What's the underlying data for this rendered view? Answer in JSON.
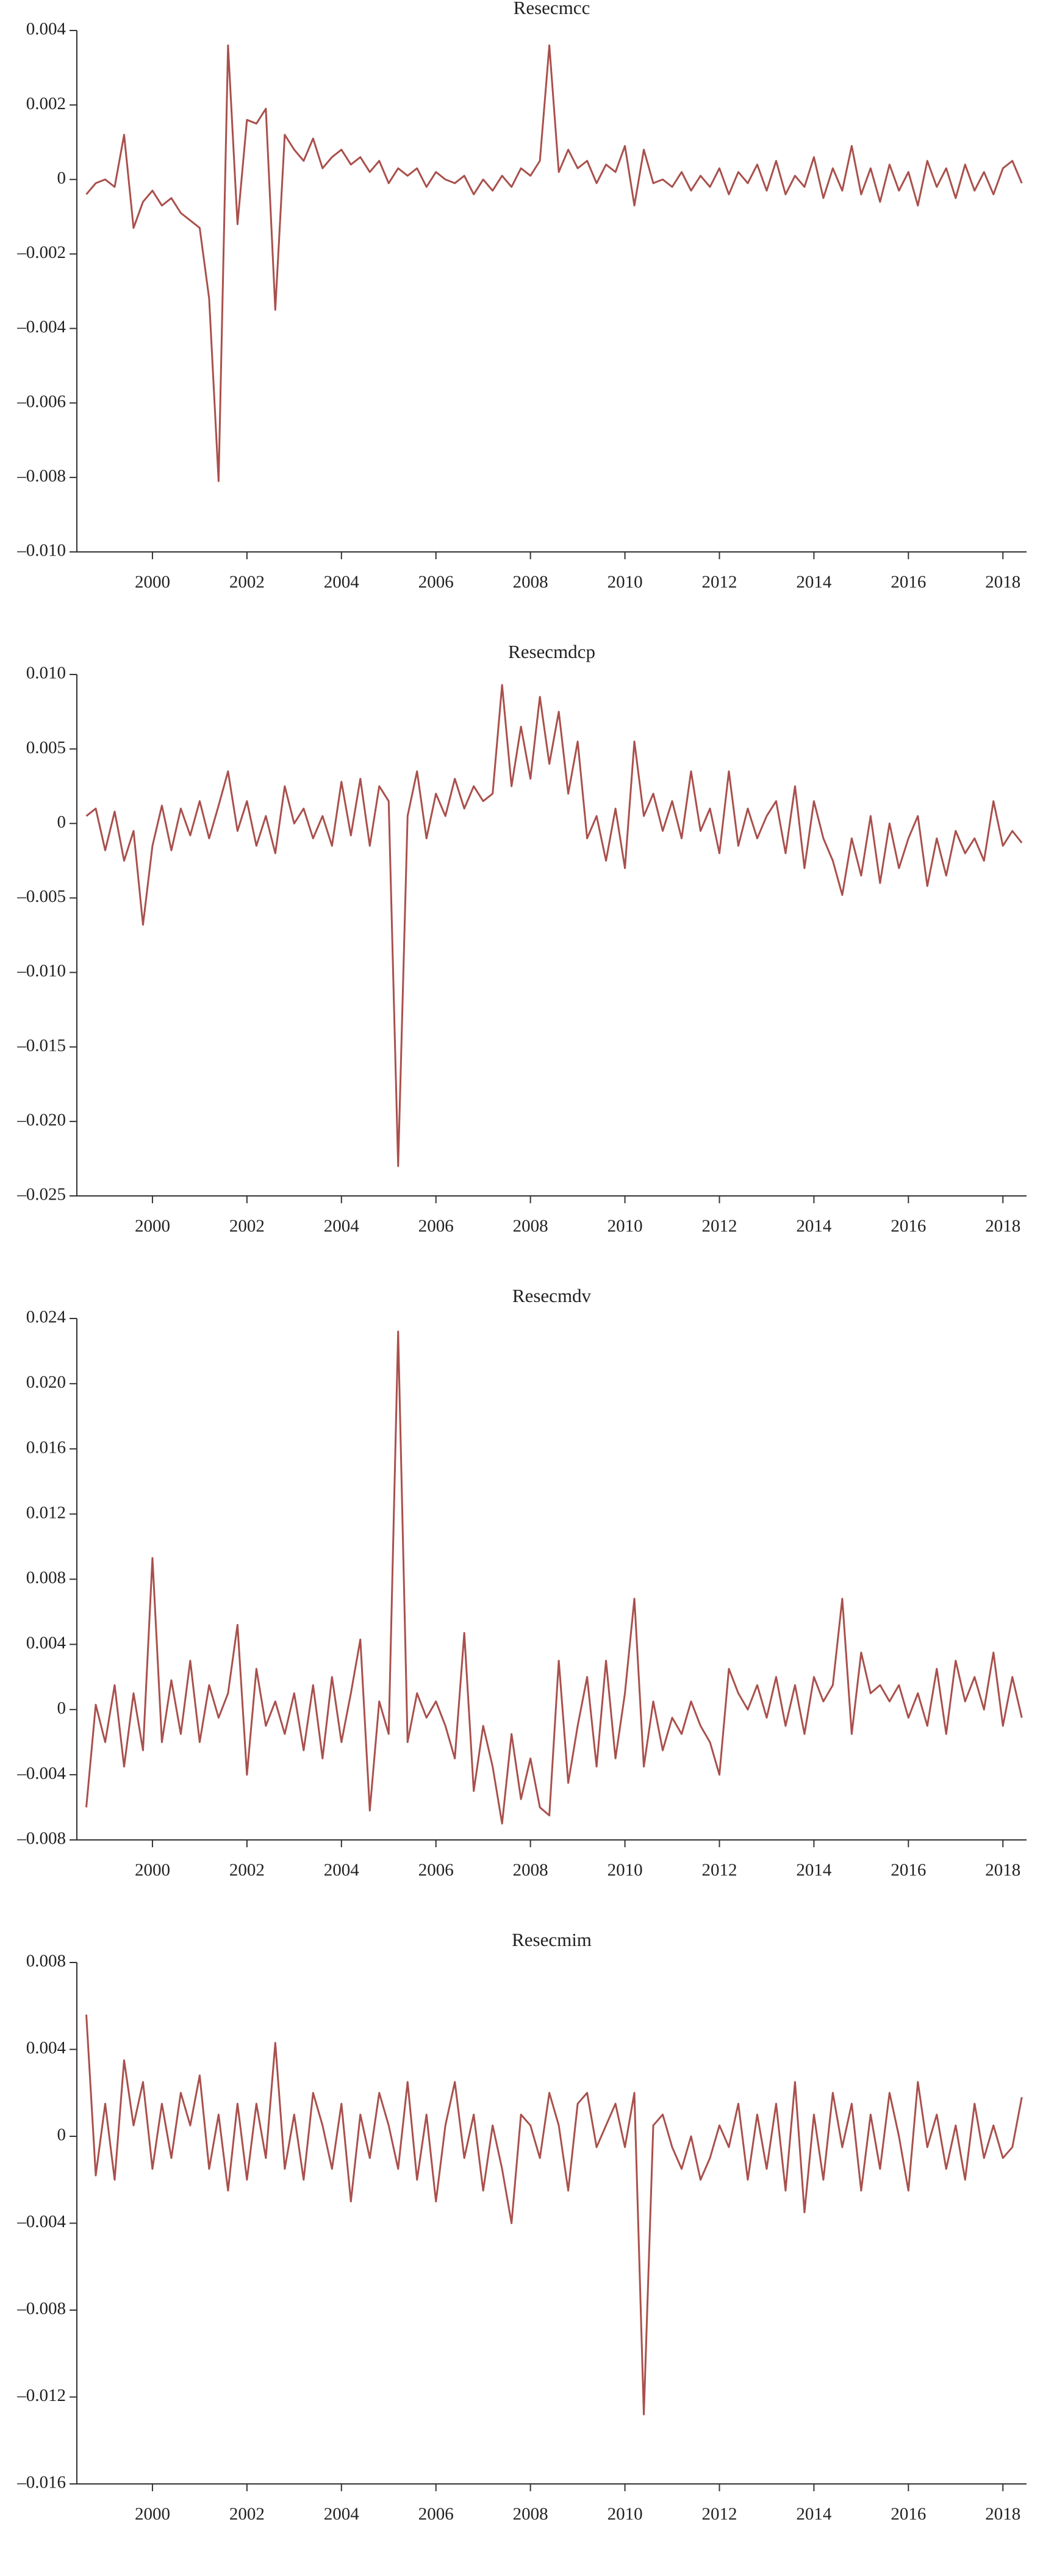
{
  "chart_data": [
    {
      "type": "line",
      "title": "Resecmcc",
      "color": "#a9504c",
      "xlim": [
        1998.4,
        2018.5
      ],
      "xticks": [
        2000,
        2002,
        2004,
        2006,
        2008,
        2010,
        2012,
        2014,
        2016,
        2018
      ],
      "ylim": [
        -0.01,
        0.004
      ],
      "yticks": [
        {
          "value": -0.01,
          "label": "–0.010"
        },
        {
          "value": -0.008,
          "label": "–0.008"
        },
        {
          "value": -0.006,
          "label": "–0.006"
        },
        {
          "value": -0.004,
          "label": "–0.004"
        },
        {
          "value": -0.002,
          "label": "–0.002"
        },
        0,
        0.002,
        0.004
      ],
      "x": [
        1998.6,
        1998.8,
        1999,
        1999.2,
        1999.4,
        1999.6,
        1999.8,
        2000,
        2000.2,
        2000.4,
        2000.6,
        2000.8,
        2001,
        2001.2,
        2001.4,
        2001.6,
        2001.8,
        2002,
        2002.2,
        2002.4,
        2002.6,
        2002.8,
        2003,
        2003.2,
        2003.4,
        2003.6,
        2003.8,
        2004,
        2004.2,
        2004.4,
        2004.6,
        2004.8,
        2005,
        2005.2,
        2005.4,
        2005.6,
        2005.8,
        2006,
        2006.2,
        2006.4,
        2006.6,
        2006.8,
        2007,
        2007.2,
        2007.4,
        2007.6,
        2007.8,
        2008,
        2008.2,
        2008.4,
        2008.6,
        2008.8,
        2009,
        2009.2,
        2009.4,
        2009.6,
        2009.8,
        2010,
        2010.2,
        2010.4,
        2010.6,
        2010.8,
        2011,
        2011.2,
        2011.4,
        2011.6,
        2011.8,
        2012,
        2012.2,
        2012.4,
        2012.6,
        2012.8,
        2013,
        2013.2,
        2013.4,
        2013.6,
        2013.8,
        2014,
        2014.2,
        2014.4,
        2014.6,
        2014.8,
        2015,
        2015.2,
        2015.4,
        2015.6,
        2015.8,
        2016,
        2016.2,
        2016.4,
        2016.6,
        2016.8,
        2017,
        2017.2,
        2017.4,
        2017.6,
        2017.8,
        2018,
        2018.2,
        2018.4
      ],
      "values": [
        -0.0004,
        -0.0001,
        0,
        -0.0002,
        0.0012,
        -0.0013,
        -0.0006,
        -0.0003,
        -0.0007,
        -0.0005,
        -0.0009,
        -0.0011,
        -0.0013,
        -0.0032,
        -0.0081,
        0.0036,
        -0.0012,
        0.0016,
        0.0015,
        0.0019,
        -0.0035,
        0.0012,
        0.0008,
        0.0005,
        0.0011,
        0.0003,
        0.0006,
        0.0008,
        0.0004,
        0.0006,
        0.0002,
        0.0005,
        -0.0001,
        0.0003,
        0.0001,
        0.0003,
        -0.0002,
        0.0002,
        0,
        -0.0001,
        0.0001,
        -0.0004,
        0,
        -0.0003,
        0.0001,
        -0.0002,
        0.0003,
        0.0001,
        0.0005,
        0.0036,
        0.0002,
        0.0008,
        0.0003,
        0.0005,
        -0.0001,
        0.0004,
        0.0002,
        0.0009,
        -0.0007,
        0.0008,
        -0.0001,
        0,
        -0.0002,
        0.0002,
        -0.0003,
        0.0001,
        -0.0002,
        0.0003,
        -0.0004,
        0.0002,
        -0.0001,
        0.0004,
        -0.0003,
        0.0005,
        -0.0004,
        0.0001,
        -0.0002,
        0.0006,
        -0.0005,
        0.0003,
        -0.0003,
        0.0009,
        -0.0004,
        0.0003,
        -0.0006,
        0.0004,
        -0.0003,
        0.0002,
        -0.0007,
        0.0005,
        -0.0002,
        0.0003,
        -0.0005,
        0.0004,
        -0.0003,
        0.0002,
        -0.0004,
        0.0003,
        0.0005,
        -0.0001
      ]
    },
    {
      "type": "line",
      "title": "Resecmdcp",
      "color": "#a9504c",
      "xlim": [
        1998.4,
        2018.5
      ],
      "xticks": [
        2000,
        2002,
        2004,
        2006,
        2008,
        2010,
        2012,
        2014,
        2016,
        2018
      ],
      "ylim": [
        -0.025,
        0.01
      ],
      "yticks": [
        {
          "value": -0.025,
          "label": "–0.025"
        },
        {
          "value": -0.02,
          "label": "–0.020"
        },
        {
          "value": -0.015,
          "label": "–0.015"
        },
        {
          "value": -0.01,
          "label": "–0.010"
        },
        {
          "value": -0.005,
          "label": "–0.005"
        },
        0,
        0.005,
        {
          "value": 0.01,
          "label": "0.010"
        }
      ],
      "x": [
        1998.6,
        1998.8,
        1999,
        1999.2,
        1999.4,
        1999.6,
        1999.8,
        2000,
        2000.2,
        2000.4,
        2000.6,
        2000.8,
        2001,
        2001.2,
        2001.4,
        2001.6,
        2001.8,
        2002,
        2002.2,
        2002.4,
        2002.6,
        2002.8,
        2003,
        2003.2,
        2003.4,
        2003.6,
        2003.8,
        2004,
        2004.2,
        2004.4,
        2004.6,
        2004.8,
        2005,
        2005.2,
        2005.4,
        2005.6,
        2005.8,
        2006,
        2006.2,
        2006.4,
        2006.6,
        2006.8,
        2007,
        2007.2,
        2007.4,
        2007.6,
        2007.8,
        2008,
        2008.2,
        2008.4,
        2008.6,
        2008.8,
        2009,
        2009.2,
        2009.4,
        2009.6,
        2009.8,
        2010,
        2010.2,
        2010.4,
        2010.6,
        2010.8,
        2011,
        2011.2,
        2011.4,
        2011.6,
        2011.8,
        2012,
        2012.2,
        2012.4,
        2012.6,
        2012.8,
        2013,
        2013.2,
        2013.4,
        2013.6,
        2013.8,
        2014,
        2014.2,
        2014.4,
        2014.6,
        2014.8,
        2015,
        2015.2,
        2015.4,
        2015.6,
        2015.8,
        2016,
        2016.2,
        2016.4,
        2016.6,
        2016.8,
        2017,
        2017.2,
        2017.4,
        2017.6,
        2017.8,
        2018,
        2018.2,
        2018.4
      ],
      "values": [
        0.0005,
        0.001,
        -0.0018,
        0.0008,
        -0.0025,
        -0.0005,
        -0.0068,
        -0.0015,
        0.0012,
        -0.0018,
        0.001,
        -0.0008,
        0.0015,
        -0.001,
        0.0012,
        0.0035,
        -0.0005,
        0.0015,
        -0.0015,
        0.0005,
        -0.002,
        0.0025,
        0,
        0.001,
        -0.001,
        0.0005,
        -0.0015,
        0.0028,
        -0.0008,
        0.003,
        -0.0015,
        0.0025,
        0.0015,
        -0.023,
        0.0005,
        0.0035,
        -0.001,
        0.002,
        0.0005,
        0.003,
        0.001,
        0.0025,
        0.0015,
        0.002,
        0.0093,
        0.0025,
        0.0065,
        0.003,
        0.0085,
        0.004,
        0.0075,
        0.002,
        0.0055,
        -0.001,
        0.0005,
        -0.0025,
        0.001,
        -0.003,
        0.0055,
        0.0005,
        0.002,
        -0.0005,
        0.0015,
        -0.001,
        0.0035,
        -0.0005,
        0.001,
        -0.002,
        0.0035,
        -0.0015,
        0.001,
        -0.001,
        0.0005,
        0.0015,
        -0.002,
        0.0025,
        -0.003,
        0.0015,
        -0.001,
        -0.0025,
        -0.0048,
        -0.001,
        -0.0035,
        0.0005,
        -0.004,
        0,
        -0.003,
        -0.001,
        0.0005,
        -0.0042,
        -0.001,
        -0.0035,
        -0.0005,
        -0.002,
        -0.001,
        -0.0025,
        0.0015,
        -0.0015,
        -0.0005,
        -0.0013
      ]
    },
    {
      "type": "line",
      "title": "Resecmdv",
      "color": "#a9504c",
      "xlim": [
        1998.4,
        2018.5
      ],
      "xticks": [
        2000,
        2002,
        2004,
        2006,
        2008,
        2010,
        2012,
        2014,
        2016,
        2018
      ],
      "ylim": [
        -0.008,
        0.024
      ],
      "yticks": [
        {
          "value": -0.008,
          "label": "–0.008"
        },
        {
          "value": -0.004,
          "label": "–0.004"
        },
        0,
        0.004,
        0.008,
        0.012,
        0.016,
        {
          "value": 0.02,
          "label": "0.020"
        },
        0.024
      ],
      "x": [
        1998.6,
        1998.8,
        1999,
        1999.2,
        1999.4,
        1999.6,
        1999.8,
        2000,
        2000.2,
        2000.4,
        2000.6,
        2000.8,
        2001,
        2001.2,
        2001.4,
        2001.6,
        2001.8,
        2002,
        2002.2,
        2002.4,
        2002.6,
        2002.8,
        2003,
        2003.2,
        2003.4,
        2003.6,
        2003.8,
        2004,
        2004.2,
        2004.4,
        2004.6,
        2004.8,
        2005,
        2005.2,
        2005.4,
        2005.6,
        2005.8,
        2006,
        2006.2,
        2006.4,
        2006.6,
        2006.8,
        2007,
        2007.2,
        2007.4,
        2007.6,
        2007.8,
        2008,
        2008.2,
        2008.4,
        2008.6,
        2008.8,
        2009,
        2009.2,
        2009.4,
        2009.6,
        2009.8,
        2010,
        2010.2,
        2010.4,
        2010.6,
        2010.8,
        2011,
        2011.2,
        2011.4,
        2011.6,
        2011.8,
        2012,
        2012.2,
        2012.4,
        2012.6,
        2012.8,
        2013,
        2013.2,
        2013.4,
        2013.6,
        2013.8,
        2014,
        2014.2,
        2014.4,
        2014.6,
        2014.8,
        2015,
        2015.2,
        2015.4,
        2015.6,
        2015.8,
        2016,
        2016.2,
        2016.4,
        2016.6,
        2016.8,
        2017,
        2017.2,
        2017.4,
        2017.6,
        2017.8,
        2018,
        2018.2,
        2018.4
      ],
      "values": [
        -0.006,
        0.0003,
        -0.002,
        0.0015,
        -0.0035,
        0.001,
        -0.0025,
        0.0093,
        -0.002,
        0.0018,
        -0.0015,
        0.003,
        -0.002,
        0.0015,
        -0.0005,
        0.001,
        0.0052,
        -0.004,
        0.0025,
        -0.001,
        0.0005,
        -0.0015,
        0.001,
        -0.0025,
        0.0015,
        -0.003,
        0.002,
        -0.002,
        0.001,
        0.0043,
        -0.0062,
        0.0005,
        -0.0015,
        0.0232,
        -0.002,
        0.001,
        -0.0005,
        0.0005,
        -0.001,
        -0.003,
        0.0047,
        -0.005,
        -0.001,
        -0.0035,
        -0.007,
        -0.0015,
        -0.0055,
        -0.003,
        -0.006,
        -0.0065,
        0.003,
        -0.0045,
        -0.001,
        0.002,
        -0.0035,
        0.003,
        -0.003,
        0.001,
        0.0068,
        -0.0035,
        0.0005,
        -0.0025,
        -0.0005,
        -0.0015,
        0.0005,
        -0.001,
        -0.002,
        -0.004,
        0.0025,
        0.001,
        0,
        0.0015,
        -0.0005,
        0.002,
        -0.001,
        0.0015,
        -0.0015,
        0.002,
        0.0005,
        0.0015,
        0.0068,
        -0.0015,
        0.0035,
        0.001,
        0.0015,
        0.0005,
        0.0015,
        -0.0005,
        0.001,
        -0.001,
        0.0025,
        -0.0015,
        0.003,
        0.0005,
        0.002,
        0,
        0.0035,
        -0.001,
        0.002,
        -0.0005
      ]
    },
    {
      "type": "line",
      "title": "Resecmim",
      "color": "#a9504c",
      "xlim": [
        1998.4,
        2018.5
      ],
      "xticks": [
        2000,
        2002,
        2004,
        2006,
        2008,
        2010,
        2012,
        2014,
        2016,
        2018
      ],
      "ylim": [
        -0.016,
        0.008
      ],
      "yticks": [
        {
          "value": -0.016,
          "label": "–0.016"
        },
        {
          "value": -0.012,
          "label": "–0.012"
        },
        {
          "value": -0.008,
          "label": "–0.008"
        },
        {
          "value": -0.004,
          "label": "–0.004"
        },
        0,
        0.004,
        0.008
      ],
      "x": [
        1998.6,
        1998.8,
        1999,
        1999.2,
        1999.4,
        1999.6,
        1999.8,
        2000,
        2000.2,
        2000.4,
        2000.6,
        2000.8,
        2001,
        2001.2,
        2001.4,
        2001.6,
        2001.8,
        2002,
        2002.2,
        2002.4,
        2002.6,
        2002.8,
        2003,
        2003.2,
        2003.4,
        2003.6,
        2003.8,
        2004,
        2004.2,
        2004.4,
        2004.6,
        2004.8,
        2005,
        2005.2,
        2005.4,
        2005.6,
        2005.8,
        2006,
        2006.2,
        2006.4,
        2006.6,
        2006.8,
        2007,
        2007.2,
        2007.4,
        2007.6,
        2007.8,
        2008,
        2008.2,
        2008.4,
        2008.6,
        2008.8,
        2009,
        2009.2,
        2009.4,
        2009.6,
        2009.8,
        2010,
        2010.2,
        2010.4,
        2010.6,
        2010.8,
        2011,
        2011.2,
        2011.4,
        2011.6,
        2011.8,
        2012,
        2012.2,
        2012.4,
        2012.6,
        2012.8,
        2013,
        2013.2,
        2013.4,
        2013.6,
        2013.8,
        2014,
        2014.2,
        2014.4,
        2014.6,
        2014.8,
        2015,
        2015.2,
        2015.4,
        2015.6,
        2015.8,
        2016,
        2016.2,
        2016.4,
        2016.6,
        2016.8,
        2017,
        2017.2,
        2017.4,
        2017.6,
        2017.8,
        2018,
        2018.2,
        2018.4
      ],
      "values": [
        0.0056,
        -0.0018,
        0.0015,
        -0.002,
        0.0035,
        0.0005,
        0.0025,
        -0.0015,
        0.0015,
        -0.001,
        0.002,
        0.0005,
        0.0028,
        -0.0015,
        0.001,
        -0.0025,
        0.0015,
        -0.002,
        0.0015,
        -0.001,
        0.0043,
        -0.0015,
        0.001,
        -0.002,
        0.002,
        0.0005,
        -0.0015,
        0.0015,
        -0.003,
        0.001,
        -0.001,
        0.002,
        0.0005,
        -0.0015,
        0.0025,
        -0.002,
        0.001,
        -0.003,
        0.0005,
        0.0025,
        -0.001,
        0.001,
        -0.0025,
        0.0005,
        -0.0015,
        -0.004,
        0.001,
        0.0005,
        -0.001,
        0.002,
        0.0005,
        -0.0025,
        0.0015,
        0.002,
        -0.0005,
        0.0005,
        0.0015,
        -0.0005,
        0.002,
        -0.0128,
        0.0005,
        0.001,
        -0.0005,
        -0.0015,
        0,
        -0.002,
        -0.001,
        0.0005,
        -0.0005,
        0.0015,
        -0.002,
        0.001,
        -0.0015,
        0.0015,
        -0.0025,
        0.0025,
        -0.0035,
        0.001,
        -0.002,
        0.002,
        -0.0005,
        0.0015,
        -0.0025,
        0.001,
        -0.0015,
        0.002,
        0,
        -0.0025,
        0.0025,
        -0.0005,
        0.001,
        -0.0015,
        0.0005,
        -0.002,
        0.0015,
        -0.001,
        0.0005,
        -0.001,
        -0.0005,
        0.0018
      ]
    }
  ]
}
